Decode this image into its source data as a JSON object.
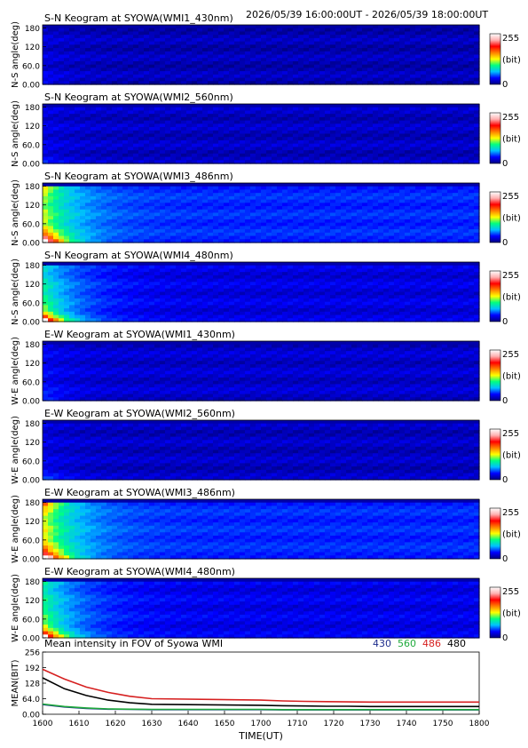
{
  "header": {
    "time_range": "2026/05/39 16:00:00UT - 2026/05/39 18:00:00UT"
  },
  "colorbar": {
    "max_label": "255",
    "unit_label": "(bit)",
    "min_label": "0",
    "colors": [
      "#00007f",
      "#0000ff",
      "#00c0ff",
      "#00ff80",
      "#ffff00",
      "#ff8000",
      "#ff0000",
      "#ffb0b0",
      "#ffffff"
    ]
  },
  "keograms": [
    {
      "title": "S-N Keogram at SYOWA(WMI1_430nm)",
      "ylabel": "N-S angle(deg)",
      "yticks": [
        "180",
        "120",
        "60.0",
        "0.00"
      ],
      "base": 0.05,
      "decay": 0.03,
      "peak_top": 0.02,
      "peak_bottom": 0.06
    },
    {
      "title": "S-N Keogram at SYOWA(WMI2_560nm)",
      "ylabel": "N-S angle(deg)",
      "yticks": [
        "180",
        "120",
        "60.0",
        "0.00"
      ],
      "base": 0.06,
      "decay": 0.03,
      "peak_top": 0.02,
      "peak_bottom": 0.06
    },
    {
      "title": "S-N Keogram at SYOWA(WMI3_486nm)",
      "ylabel": "N-S angle(deg)",
      "yticks": [
        "180",
        "120",
        "60.0",
        "0.00"
      ],
      "base": 0.16,
      "decay": 0.36,
      "peak_top": 0.45,
      "peak_bottom": 0.8
    },
    {
      "title": "S-N Keogram at SYOWA(WMI4_480nm)",
      "ylabel": "N-S angle(deg)",
      "yticks": [
        "180",
        "120",
        "60.0",
        "0.00"
      ],
      "base": 0.09,
      "decay": 0.32,
      "peak_top": 0.1,
      "peak_bottom": 0.75
    },
    {
      "title": "E-W Keogram at SYOWA(WMI1_430nm)",
      "ylabel": "W-E angle(deg)",
      "yticks": [
        "180",
        "120",
        "60.0",
        "0.00"
      ],
      "base": 0.07,
      "decay": 0.04,
      "peak_top": 0.02,
      "peak_bottom": 0.1
    },
    {
      "title": "E-W Keogram at SYOWA(WMI2_560nm)",
      "ylabel": "W-E angle(deg)",
      "yticks": [
        "180",
        "120",
        "60.0",
        "0.00"
      ],
      "base": 0.06,
      "decay": 0.03,
      "peak_top": 0.02,
      "peak_bottom": 0.1
    },
    {
      "title": "E-W Keogram at SYOWA(WMI3_486nm)",
      "ylabel": "W-E angle(deg)",
      "yticks": [
        "180",
        "120",
        "60.0",
        "0.00"
      ],
      "base": 0.16,
      "decay": 0.4,
      "peak_top": 0.6,
      "peak_bottom": 0.8
    },
    {
      "title": "E-W Keogram at SYOWA(WMI4_480nm)",
      "ylabel": "W-E angle(deg)",
      "yticks": [
        "180",
        "120",
        "60.0",
        "0.00"
      ],
      "base": 0.1,
      "decay": 0.34,
      "peak_top": 0.2,
      "peak_bottom": 0.75
    }
  ],
  "chart_data": {
    "type": "line",
    "title": "Mean intensity in FOV of Syowa WMI",
    "xlabel": "TIME(UT)",
    "ylabel": "MEAN(BIT)",
    "ylim": [
      0,
      256
    ],
    "xlim": [
      1600,
      1800
    ],
    "xticks": [
      "1600",
      "1610",
      "1620",
      "1630",
      "1640",
      "1650",
      "1700",
      "1710",
      "1720",
      "1730",
      "1740",
      "1750",
      "1800"
    ],
    "yticks": [
      "256",
      "192",
      "128",
      "64.0",
      "0.00"
    ],
    "x": [
      1600,
      1610,
      1620,
      1630,
      1640,
      1650,
      1700,
      1710,
      1720,
      1730,
      1740,
      1750,
      1800
    ],
    "series": [
      {
        "name": "430",
        "color": "#1e2d8c",
        "values": [
          40,
          30,
          24,
          21,
          20,
          19,
          19,
          18,
          18,
          18,
          18,
          18,
          18
        ]
      },
      {
        "name": "560",
        "color": "#1faa3c",
        "values": [
          42,
          32,
          26,
          22,
          21,
          20,
          20,
          19,
          19,
          19,
          19,
          19,
          19
        ]
      },
      {
        "name": "486",
        "color": "#d62020",
        "values": [
          185,
          145,
          112,
          90,
          74,
          64,
          58,
          55,
          53,
          52,
          51,
          50,
          50
        ]
      },
      {
        "name": "480",
        "color": "#000000",
        "values": [
          150,
          105,
          77,
          58,
          47,
          41,
          37,
          35,
          34,
          33,
          33,
          32,
          32
        ]
      }
    ]
  }
}
